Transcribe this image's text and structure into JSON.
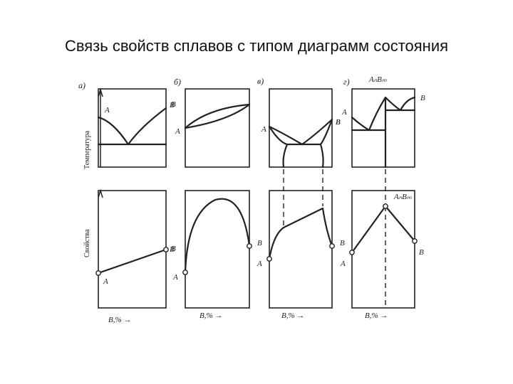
{
  "slide": {
    "title": "Связь свойств сплавов с типом диаграмм состояния"
  },
  "figure": {
    "y_label_top": "Температура",
    "y_label_bottom": "Свойства",
    "panels": [
      {
        "letter": "а)",
        "top_labels": [
          "A",
          "B"
        ],
        "bottom_labels": [
          "B",
          "A"
        ],
        "x_label": "B,%  →"
      },
      {
        "letter": "б)",
        "top_labels": [
          "B",
          "A"
        ],
        "bottom_labels": [
          "B",
          "A"
        ],
        "x_label": "B,%  →"
      },
      {
        "letter": "в)",
        "top_labels": [
          "B",
          "A"
        ],
        "bottom_labels": [
          "B",
          "A"
        ],
        "x_label": "B,%  →"
      },
      {
        "letter": "г)",
        "compound": "AₙBₘ",
        "top_labels": [
          "B",
          "A",
          "B"
        ],
        "bottom_labels": [
          "B",
          "A",
          "B"
        ],
        "compound_bottom": "AₙBₘ",
        "x_label": "B,%  →"
      }
    ]
  }
}
